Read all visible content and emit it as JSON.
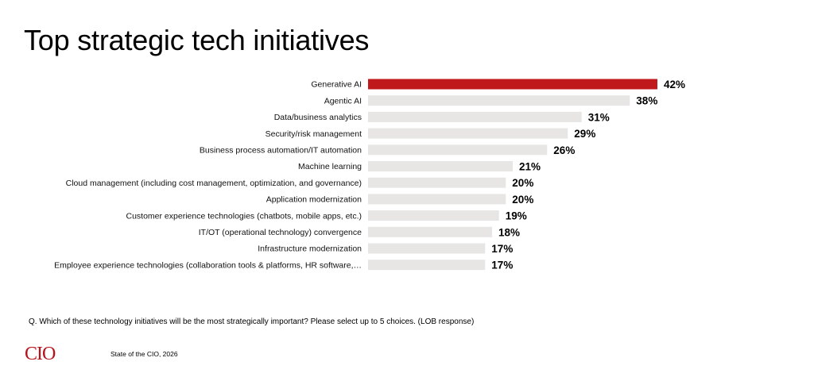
{
  "slide": {
    "title": "Top strategic tech initiatives",
    "question": "Q. Which of these technology initiatives will be the most strategically important? Please select up to 5 choices. (LOB response)",
    "logo_text": "CIO",
    "source": "State of the CIO, 2026"
  },
  "colors": {
    "highlight_bar": "#c0191c",
    "default_bar": "#e7e6e4",
    "logo": "#b8121b"
  },
  "chart_data": {
    "type": "bar",
    "orientation": "horizontal",
    "title": "Top strategic tech initiatives",
    "xlabel": "",
    "ylabel": "",
    "value_suffix": "%",
    "grid": false,
    "legend": "none",
    "highlight_index": 0,
    "xlim": [
      0,
      42
    ],
    "categories": [
      "Generative AI",
      "Agentic AI",
      "Data/business analytics",
      "Security/risk management",
      "Business process automation/IT automation",
      "Machine learning",
      "Cloud management (including cost management, optimization, and governance)",
      "Application modernization",
      "Customer experience technologies (chatbots, mobile apps, etc.)",
      "IT/OT (operational technology) convergence",
      "Infrastructure modernization",
      "Employee experience technologies (collaboration tools & platforms, HR software,…"
    ],
    "values": [
      42,
      38,
      31,
      29,
      26,
      21,
      20,
      20,
      19,
      18,
      17,
      17
    ]
  }
}
